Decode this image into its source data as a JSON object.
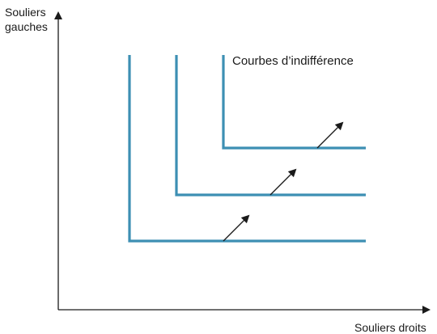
{
  "diagram": {
    "y_axis_label_line1": "Souliers",
    "y_axis_label_line2": "gauches",
    "x_axis_label": "Souliers droits",
    "curves_label": "Courbes d’indifférence",
    "curve_count": 3,
    "arrow_count": 3,
    "colors": {
      "curve": "#3d8fb3",
      "axis": "#1a1a1a",
      "arrow": "#1a1a1a",
      "text": "#1a1a1a"
    }
  }
}
